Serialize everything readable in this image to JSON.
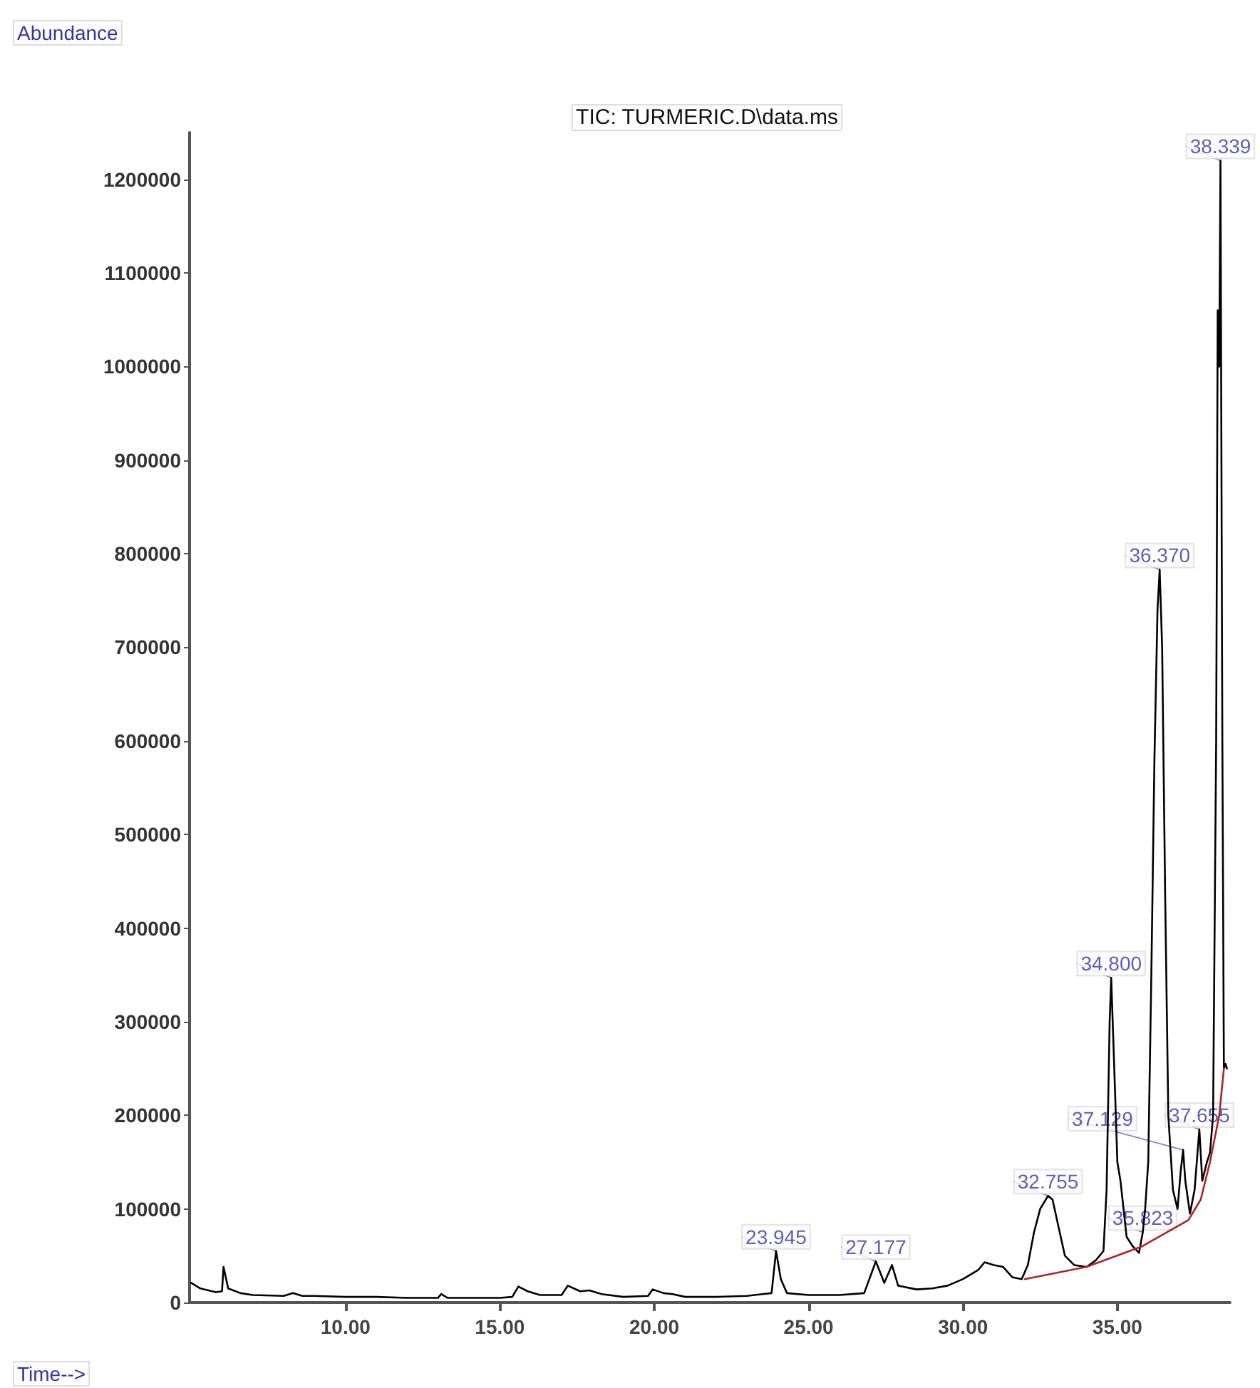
{
  "chart_data": {
    "type": "line",
    "title": "TIC: TURMERIC.D\\data.ms",
    "xlabel": "Time-->",
    "ylabel": "Abundance",
    "xlim": [
      4.95,
      38.65
    ],
    "xticks": [
      {
        "value": 10,
        "label": "10.00"
      },
      {
        "value": 15,
        "label": "15.00"
      },
      {
        "value": 20,
        "label": "20.00"
      },
      {
        "value": 25,
        "label": "25.00"
      },
      {
        "value": 30,
        "label": "30.00"
      },
      {
        "value": 35,
        "label": "35.00"
      }
    ],
    "ylim": [
      0,
      1250000
    ],
    "yticks": [
      0,
      100000,
      200000,
      300000,
      400000,
      500000,
      600000,
      700000,
      800000,
      900000,
      1000000,
      1100000,
      1200000
    ],
    "grid": false,
    "marker": "none",
    "line_style": "solid",
    "series": [
      {
        "color": "#000000",
        "x": [
          5.0,
          5.3,
          5.8,
          6.0,
          6.05,
          6.2,
          6.6,
          7.0,
          8.0,
          8.3,
          8.6,
          9.0,
          10.0,
          11.0,
          12.0,
          13.0,
          13.1,
          13.3,
          15.0,
          15.4,
          15.6,
          15.9,
          16.3,
          17.0,
          17.2,
          17.6,
          17.9,
          18.3,
          19.0,
          19.8,
          19.95,
          20.3,
          20.6,
          21.0,
          22.0,
          23.0,
          23.5,
          23.8,
          23.945,
          24.1,
          24.3,
          25.0,
          26.0,
          26.8,
          27.177,
          27.45,
          27.7,
          27.9,
          28.5,
          29.0,
          29.5,
          30.0,
          30.5,
          30.7,
          31.0,
          31.3,
          31.6,
          31.9,
          32.1,
          32.3,
          32.5,
          32.755,
          32.9,
          33.1,
          33.3,
          33.6,
          34.0,
          34.3,
          34.55,
          34.65,
          34.75,
          34.8,
          34.9,
          35.0,
          35.1,
          35.3,
          35.5,
          35.7,
          35.823,
          35.9,
          36.0,
          36.1,
          36.2,
          36.3,
          36.37,
          36.45,
          36.55,
          36.65,
          36.8,
          36.95,
          37.05,
          37.129,
          37.2,
          37.35,
          37.5,
          37.655,
          37.75,
          37.9,
          38.0,
          38.1,
          38.2,
          38.25,
          38.3,
          38.339,
          38.4,
          38.45,
          38.5,
          38.55
        ],
        "values": [
          21000,
          15000,
          11000,
          12000,
          38000,
          15000,
          10000,
          8000,
          7000,
          10000,
          7000,
          7000,
          6000,
          6000,
          5000,
          5000,
          9000,
          5000,
          5000,
          6000,
          17000,
          12000,
          8000,
          8000,
          18000,
          12000,
          13000,
          9000,
          6000,
          7000,
          14000,
          10000,
          9000,
          6000,
          6000,
          7000,
          9000,
          10000,
          55000,
          25000,
          10000,
          8000,
          8000,
          10000,
          44000,
          21000,
          40000,
          18000,
          14000,
          15000,
          18000,
          25000,
          35000,
          43000,
          40000,
          38000,
          27000,
          25000,
          40000,
          75000,
          100000,
          114000,
          110000,
          80000,
          50000,
          40000,
          38000,
          45000,
          55000,
          120000,
          300000,
          347000,
          250000,
          150000,
          130000,
          70000,
          60000,
          53000,
          75000,
          100000,
          150000,
          350000,
          580000,
          740000,
          783000,
          700000,
          430000,
          200000,
          120000,
          100000,
          140000,
          163000,
          130000,
          95000,
          120000,
          185000,
          130000,
          150000,
          160000,
          200000,
          600000,
          1060000,
          1000000,
          1220000,
          600000,
          250000,
          255000,
          250000
        ]
      },
      {
        "color": "#b22222",
        "x": [
          32.0,
          34.0,
          35.8,
          37.3,
          37.7,
          38.0,
          38.3,
          38.45
        ],
        "values": [
          25000,
          38000,
          60000,
          88000,
          110000,
          150000,
          200000,
          250000
        ]
      }
    ],
    "annotations": [
      {
        "text": "23.945",
        "x": 23.945,
        "y": 55000
      },
      {
        "text": "27.177",
        "x": 27.177,
        "y": 44000
      },
      {
        "text": "32.755",
        "x": 32.755,
        "y": 114000
      },
      {
        "text": "34.800",
        "x": 34.8,
        "y": 347000
      },
      {
        "text": "35.823",
        "x": 35.823,
        "y": 75000
      },
      {
        "text": "36.370",
        "x": 36.37,
        "y": 783000
      },
      {
        "text": "37.129",
        "x": 37.129,
        "y": 163000
      },
      {
        "text": "37.655",
        "x": 37.655,
        "y": 185000
      },
      {
        "text": "38.339",
        "x": 38.339,
        "y": 1220000
      }
    ]
  }
}
